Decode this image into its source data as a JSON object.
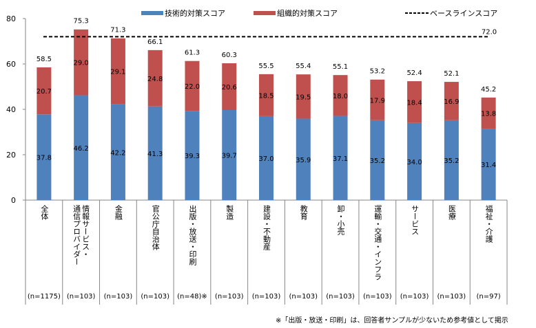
{
  "chart_data": {
    "type": "bar",
    "stacked": true,
    "title": "",
    "xlabel": "",
    "ylabel": "",
    "ylim": [
      0,
      80
    ],
    "yticks": [
      0,
      20,
      40,
      60,
      80
    ],
    "grid": false,
    "legend_position": "top",
    "categories": [
      "全体",
      "情報サービス・通信プロバイダー",
      "金融",
      "官公庁自治体",
      "出版・放送・印刷",
      "製造",
      "建設・不動産",
      "教育",
      "卸・小売",
      "運輸・交通・インフラ",
      "サービス",
      "医療",
      "福祉・介護"
    ],
    "category_label_lines": [
      [
        "全体"
      ],
      [
        "情報サービス・",
        "通信プロバイダー"
      ],
      [
        "金融"
      ],
      [
        "官公庁自治体"
      ],
      [
        "出版・放送・印刷"
      ],
      [
        "製造"
      ],
      [
        "建設・不動産"
      ],
      [
        "教育"
      ],
      [
        "卸・小売"
      ],
      [
        "運輸・交通・インフラ"
      ],
      [
        "サービス"
      ],
      [
        "医療"
      ],
      [
        "福祉・介護"
      ]
    ],
    "sample_sizes": [
      "(n=1175)",
      "(n=103)",
      "(n=103)",
      "(n=103)",
      "(n=48)※",
      "(n=103)",
      "(n=103)",
      "(n=103)",
      "(n=103)",
      "(n=103)",
      "(n=103)",
      "(n=103)",
      "(n=97)"
    ],
    "series": [
      {
        "name": "技術的対策スコア",
        "color": "#4f81bd",
        "values": [
          37.8,
          46.2,
          42.2,
          41.3,
          39.3,
          39.7,
          37.0,
          35.9,
          37.1,
          35.2,
          34.0,
          35.2,
          31.4
        ]
      },
      {
        "name": "組織的対策スコア",
        "color": "#c0504d",
        "values": [
          20.7,
          29.0,
          29.1,
          24.8,
          22.0,
          20.6,
          18.5,
          19.5,
          18.0,
          17.9,
          18.4,
          16.9,
          13.8
        ]
      }
    ],
    "totals": [
      58.5,
      75.3,
      71.3,
      66.1,
      61.3,
      60.3,
      55.5,
      55.4,
      55.1,
      53.2,
      52.4,
      52.1,
      45.2
    ],
    "reference_line": {
      "name": "ベースラインスコア",
      "value": 72.0,
      "label": "72.0",
      "color": "#000000",
      "style": "dashed"
    }
  },
  "footnote": "※「出版・放送・印刷」は、回答者サンプルが少ないため参考値として掲示"
}
